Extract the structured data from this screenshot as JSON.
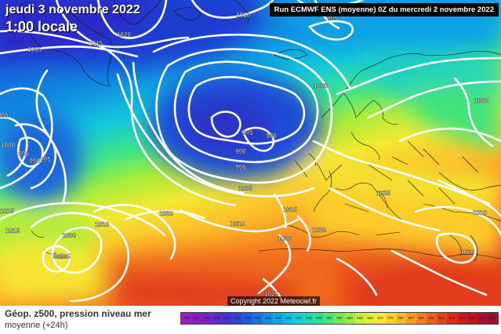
{
  "header": {
    "date": "jeudi 3 novembre 2022",
    "time": "1:00 locale",
    "run_info": "Run ECMWF ENS (moyenne) 0Z du mercredi 2 novembre 2022"
  },
  "copyright": "Copyright 2022 Meteociel.fr",
  "legend": {
    "title": "Géop. z500, pression niveau mer",
    "subtitle": "moyenne  (+24h)",
    "levels": [
      "496",
      "500",
      "504",
      "508",
      "512",
      "516",
      "520",
      "524",
      "528",
      "532",
      "536",
      "540",
      "544",
      "548",
      "552",
      "556",
      "560",
      "564",
      "568",
      "572",
      "576",
      "580",
      "584",
      "588",
      "592",
      "596",
      "600",
      "604",
      "608",
      "612",
      "616"
    ],
    "colors": [
      "#9a1ebd",
      "#8a1cc4",
      "#7822cc",
      "#5e2ad2",
      "#4632d8",
      "#2f42dc",
      "#1f5ae0",
      "#1474e2",
      "#0e8ee4",
      "#0ca8e6",
      "#0cc0e4",
      "#10d2d4",
      "#18dcb6",
      "#2ae294",
      "#4ae672",
      "#70ea54",
      "#9cee3e",
      "#c4f236",
      "#e2f232",
      "#f6e830",
      "#fcd22c",
      "#fcb828",
      "#fa9c24",
      "#f67e20",
      "#f0601c",
      "#e8441a",
      "#de2c18",
      "#d01c1a",
      "#c0141e",
      "#ac1028",
      "#98102e"
    ]
  },
  "isobar_labels": [
    "1010",
    "1020",
    "1015",
    "1005",
    "995",
    "1000",
    "995",
    "990",
    "995",
    "985",
    "980",
    "990",
    "995",
    "1000",
    "1005",
    "995",
    "1010",
    "1020",
    "1015",
    "1015",
    "1010",
    "1000",
    "995",
    "995",
    "1025",
    "1020",
    "1015",
    "1020",
    "1020",
    "1025",
    "1020",
    "1010"
  ]
}
